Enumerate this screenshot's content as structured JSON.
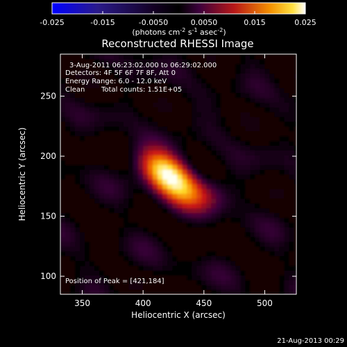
{
  "chart_data": {
    "type": "heatmap",
    "title": "Reconstructed RHESSI Image",
    "xlabel": "Heliocentric X (arcsec)",
    "ylabel": "Heliocentric Y (arcsec)",
    "xlim": [
      332,
      526
    ],
    "ylim": [
      85,
      285
    ],
    "x_ticks": [
      350,
      400,
      450,
      500
    ],
    "y_ticks": [
      100,
      150,
      200,
      250
    ],
    "colorbar": {
      "range": [
        -0.025,
        0.025
      ],
      "ticks": [
        "-0.025",
        "-0.015",
        "-0.0050",
        "0.0050",
        "0.015",
        "0.025"
      ],
      "units_prefix": "(photons cm",
      "units_exp1": "-2",
      "units_mid": " s",
      "units_exp2": "-1",
      "units_mid2": " asec",
      "units_exp3": "-2",
      "units_suffix": ")"
    },
    "annotations": {
      "time_range": "3-Aug-2011 06:23:02.000 to 06:29:02.000",
      "detectors": "Detectors: 4F 5F 6F 7F 8F, Att 0",
      "energy": "Energy Range: 6.0 - 12.0 keV",
      "method": "Clean",
      "counts": "Total counts: 1.51E+05",
      "peak": "Position of Peak = [421,184]"
    },
    "peak": {
      "x": 421,
      "y": 184,
      "value": 0.025
    },
    "source": {
      "sigma_major": 17,
      "sigma_minor": 10,
      "angle_deg": -38
    },
    "colormap": "hot (blue for negative)"
  },
  "footer": {
    "date": "21-Aug-2013 00:29"
  }
}
